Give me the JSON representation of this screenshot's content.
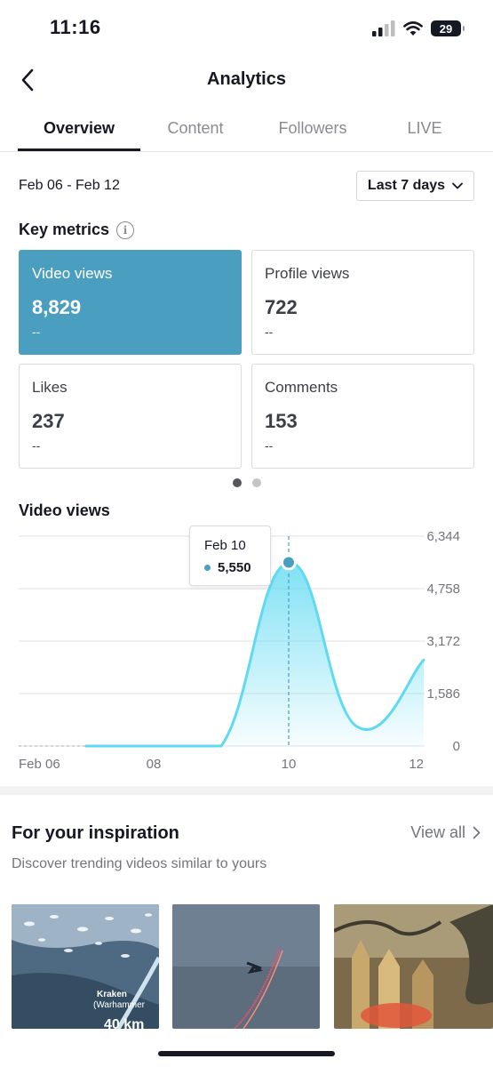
{
  "status_bar": {
    "time": "11:16",
    "battery": "29"
  },
  "nav": {
    "title": "Analytics"
  },
  "tabs": [
    {
      "label": "Overview",
      "active": true
    },
    {
      "label": "Content",
      "active": false
    },
    {
      "label": "Followers",
      "active": false
    },
    {
      "label": "LIVE",
      "active": false
    }
  ],
  "date_range": "Feb 06 - Feb 12",
  "period_select": {
    "value": "Last 7 days"
  },
  "key_metrics": {
    "title": "Key metrics",
    "cards": [
      {
        "label": "Video views",
        "value": "8,829",
        "delta": "--",
        "selected": true
      },
      {
        "label": "Profile views",
        "value": "722",
        "delta": "--",
        "selected": false
      },
      {
        "label": "Likes",
        "value": "237",
        "delta": "--",
        "selected": false
      },
      {
        "label": "Comments",
        "value": "153",
        "delta": "--",
        "selected": false
      }
    ],
    "page": 1,
    "page_count": 2
  },
  "chart_title": "Video views",
  "tooltip": {
    "date": "Feb 10",
    "value": "5,550"
  },
  "chart_data": {
    "type": "area",
    "title": "Video views",
    "x": [
      "Feb 06",
      "Feb 07",
      "Feb 08",
      "Feb 09",
      "Feb 10",
      "Feb 11",
      "Feb 12"
    ],
    "x_tick_labels": [
      "Feb 06",
      "08",
      "10",
      "12"
    ],
    "series": [
      {
        "values": [
          0,
          0,
          0,
          0,
          5550,
          600,
          2600
        ]
      }
    ],
    "y_ticks": [
      "6,344",
      "4,758",
      "3,172",
      "1,586",
      "0"
    ],
    "ylim": [
      0,
      6344
    ],
    "grid": true,
    "highlight": {
      "x": "Feb 10",
      "value": 5550
    }
  },
  "inspiration": {
    "title": "For your inspiration",
    "view_all": "View all",
    "subtitle": "Discover trending videos similar to yours",
    "thumb1_text": [
      "Kraken",
      "(Warhammer",
      "40 km"
    ]
  },
  "colors": {
    "accent": "#4a9fc1",
    "line": "#5fdaf2",
    "text": "#161823"
  }
}
